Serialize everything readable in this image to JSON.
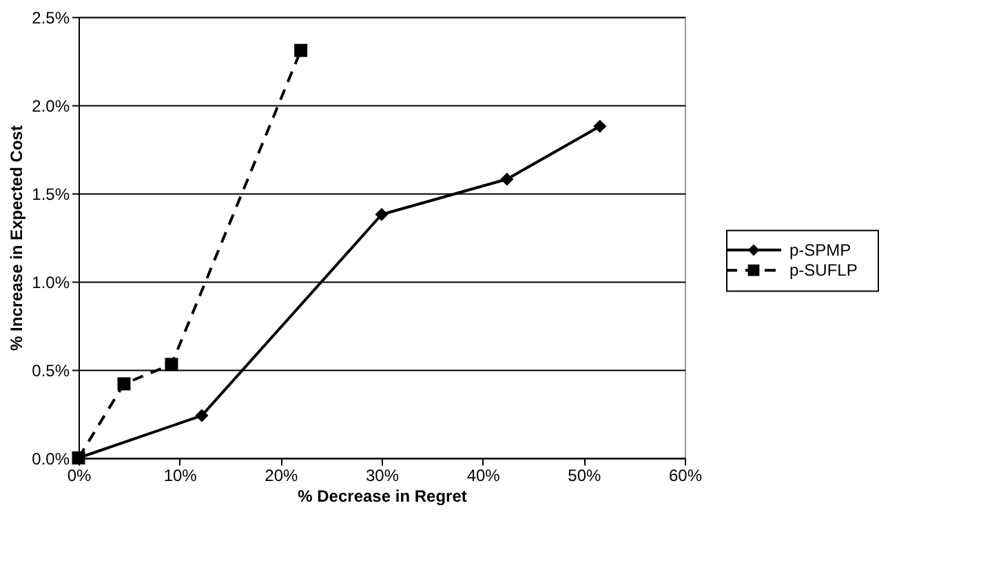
{
  "chart_data": {
    "type": "line",
    "xlabel": "% Decrease in Regret",
    "ylabel": "% Increase in Expected Cost",
    "xlim": [
      0,
      60
    ],
    "xticks": [
      {
        "value": 0,
        "label": "0%"
      },
      {
        "value": 10,
        "label": "10%"
      },
      {
        "value": 20,
        "label": "20%"
      },
      {
        "value": 30,
        "label": "30%"
      },
      {
        "value": 40,
        "label": "40%"
      },
      {
        "value": 50,
        "label": "50%"
      },
      {
        "value": 60,
        "label": "60%"
      }
    ],
    "ylim": [
      0,
      2.5
    ],
    "yticks": [
      {
        "value": 0,
        "label": "0.0%"
      },
      {
        "value": 0.5,
        "label": "0.5%"
      },
      {
        "value": 1.0,
        "label": "1.0%"
      },
      {
        "value": 1.5,
        "label": "1.5%"
      },
      {
        "value": 2.0,
        "label": "2.0%"
      },
      {
        "value": 2.5,
        "label": "2.5%"
      }
    ],
    "grid": "y",
    "legend": "right",
    "series": [
      {
        "name": "p-SPMP",
        "color": "#000000",
        "marker": "diamond",
        "line_style": "solid",
        "x": [
          0,
          12.2,
          30.0,
          42.4,
          51.6
        ],
        "values": [
          0,
          0.24,
          1.38,
          1.58,
          1.88
        ]
      },
      {
        "name": "p-SUFLP",
        "color": "#000000",
        "marker": "square",
        "line_style": "dashed",
        "x": [
          0,
          4.5,
          9.2,
          22.0
        ],
        "values": [
          0,
          0.42,
          0.53,
          2.31
        ]
      }
    ]
  }
}
